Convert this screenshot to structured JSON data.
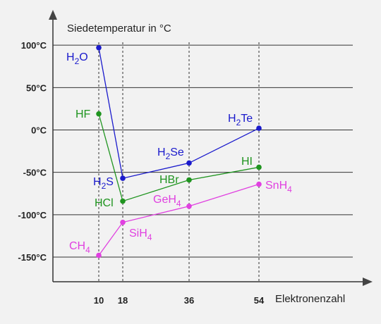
{
  "chart_data": {
    "type": "line",
    "ylabel": "Siedetemperatur in °C",
    "xlabel": "Elektronenzahl",
    "xticks": [
      10,
      18,
      36,
      54
    ],
    "yticks": [
      {
        "value": 100,
        "label": "100°C"
      },
      {
        "value": 50,
        "label": "50°C"
      },
      {
        "value": 0,
        "label": "0°C"
      },
      {
        "value": -50,
        "label": "-50°C"
      },
      {
        "value": -100,
        "label": "-100°C"
      },
      {
        "value": -150,
        "label": "-150°C"
      }
    ],
    "grid": true,
    "series": [
      {
        "group": "group16",
        "color": "#1a1acc",
        "points": [
          {
            "x": 10,
            "y": 97,
            "name": "H",
            "sub": "2",
            "post": "O"
          },
          {
            "x": 18,
            "y": -57,
            "name": "H",
            "sub": "2",
            "post": "S"
          },
          {
            "x": 36,
            "y": -39,
            "name": "H",
            "sub": "2",
            "post": "Se"
          },
          {
            "x": 54,
            "y": 2,
            "name": "H",
            "sub": "2",
            "post": "Te"
          }
        ]
      },
      {
        "group": "group17",
        "color": "#1f941f",
        "points": [
          {
            "x": 10,
            "y": 19,
            "name": "HF",
            "sub": "",
            "post": ""
          },
          {
            "x": 18,
            "y": -84,
            "name": "HCl",
            "sub": "",
            "post": ""
          },
          {
            "x": 36,
            "y": -59,
            "name": "HBr",
            "sub": "",
            "post": ""
          },
          {
            "x": 54,
            "y": -44,
            "name": "HI",
            "sub": "",
            "post": ""
          }
        ]
      },
      {
        "group": "group14",
        "color": "#e040e0",
        "points": [
          {
            "x": 10,
            "y": -148,
            "name": "CH",
            "sub": "4",
            "post": ""
          },
          {
            "x": 18,
            "y": -109,
            "name": "SiH",
            "sub": "4",
            "post": ""
          },
          {
            "x": 36,
            "y": -90,
            "name": "GeH",
            "sub": "4",
            "post": ""
          },
          {
            "x": 54,
            "y": -64,
            "name": "SnH",
            "sub": "4",
            "post": ""
          }
        ]
      }
    ]
  }
}
